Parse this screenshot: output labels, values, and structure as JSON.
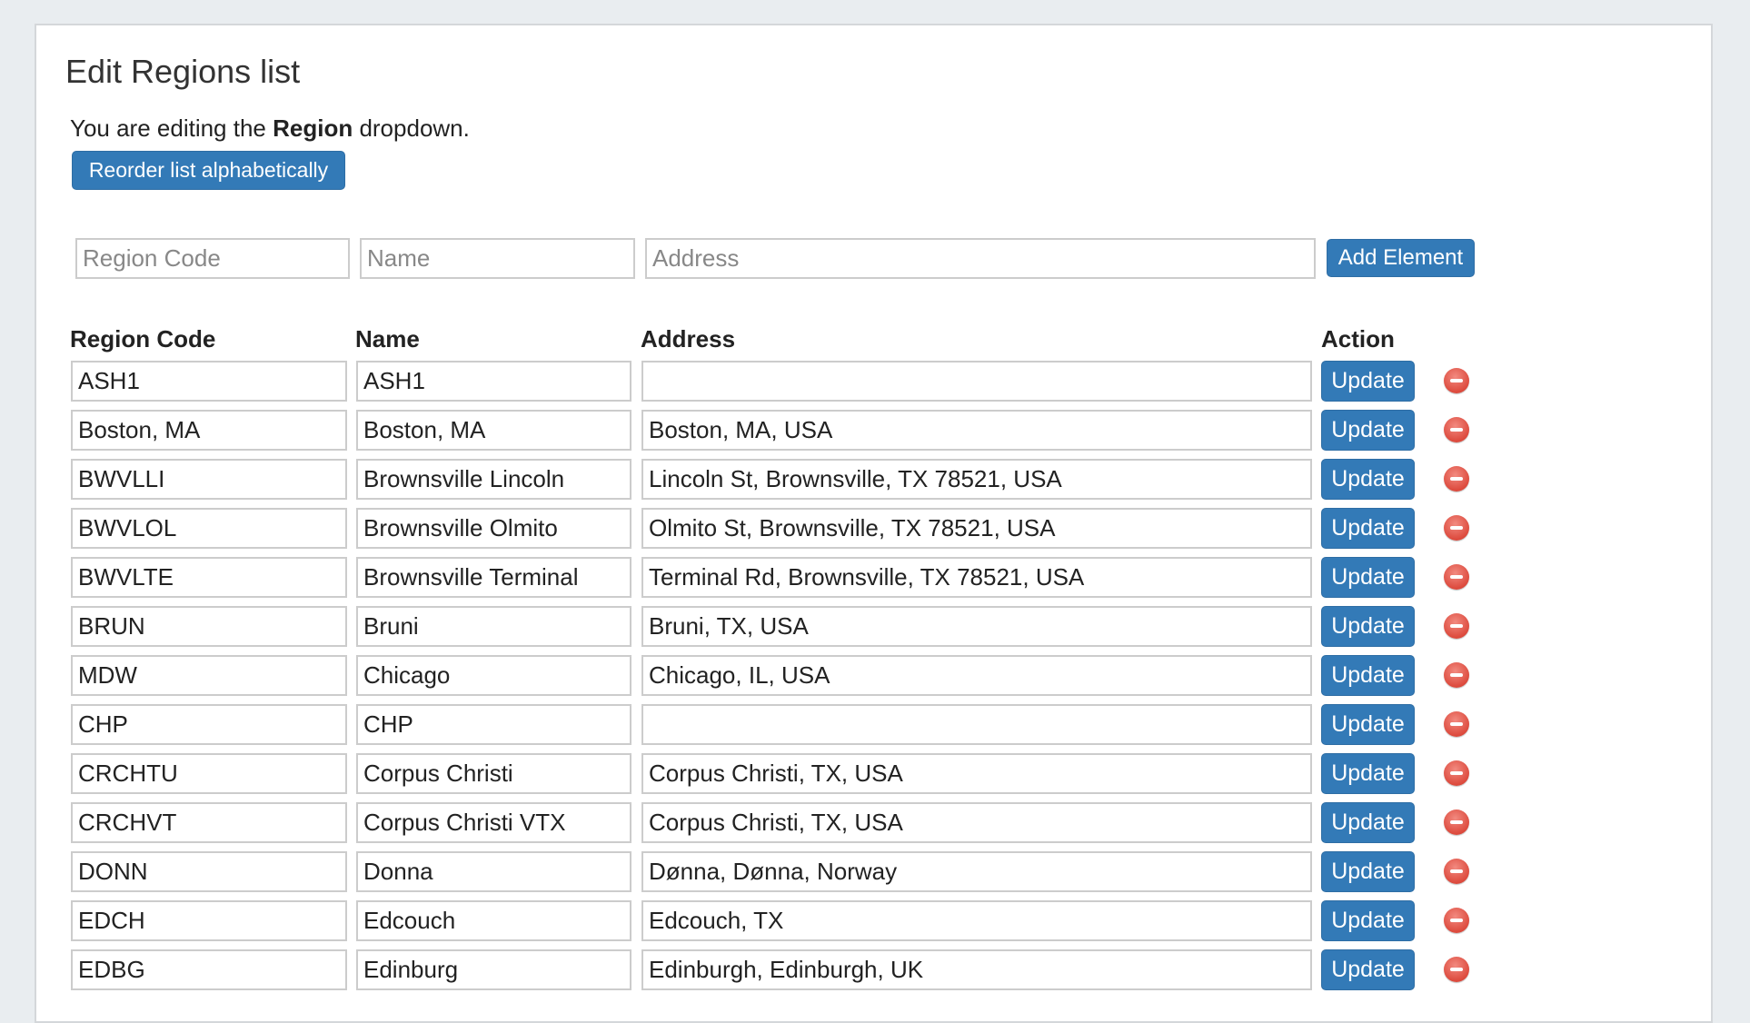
{
  "page": {
    "title": "Edit Regions list",
    "intro_prefix": "You are editing the ",
    "intro_bold": "Region",
    "intro_suffix": " dropdown.",
    "reorder_label": "Reorder list alphabetically"
  },
  "new_entry": {
    "code_placeholder": "Region Code",
    "name_placeholder": "Name",
    "address_placeholder": "Address",
    "add_label": "Add Element"
  },
  "columns": [
    "Region Code",
    "Name",
    "Address",
    "Action"
  ],
  "update_label": "Update",
  "accent_color": "#337ab7",
  "delete_color": "#dd4b3e",
  "rows": [
    {
      "code": "ASH1",
      "name": "ASH1",
      "address": ""
    },
    {
      "code": "Boston, MA",
      "name": "Boston, MA",
      "address": "Boston, MA, USA"
    },
    {
      "code": "BWVLLI",
      "name": "Brownsville Lincoln",
      "address": "Lincoln St, Brownsville, TX 78521, USA"
    },
    {
      "code": "BWVLOL",
      "name": "Brownsville Olmito",
      "address": "Olmito St, Brownsville, TX 78521, USA"
    },
    {
      "code": "BWVLTE",
      "name": "Brownsville Terminal",
      "address": "Terminal Rd, Brownsville, TX 78521, USA"
    },
    {
      "code": "BRUN",
      "name": "Bruni",
      "address": "Bruni, TX, USA"
    },
    {
      "code": "MDW",
      "name": "Chicago",
      "address": "Chicago, IL, USA"
    },
    {
      "code": "CHP",
      "name": "CHP",
      "address": ""
    },
    {
      "code": "CRCHTU",
      "name": "Corpus Christi",
      "address": "Corpus Christi, TX, USA"
    },
    {
      "code": "CRCHVT",
      "name": "Corpus Christi VTX",
      "address": "Corpus Christi, TX, USA"
    },
    {
      "code": "DONN",
      "name": "Donna",
      "address": "Dønna, Dønna, Norway"
    },
    {
      "code": "EDCH",
      "name": "Edcouch",
      "address": "Edcouch, TX"
    },
    {
      "code": "EDBG",
      "name": "Edinburg",
      "address": "Edinburgh, Edinburgh, UK"
    }
  ]
}
